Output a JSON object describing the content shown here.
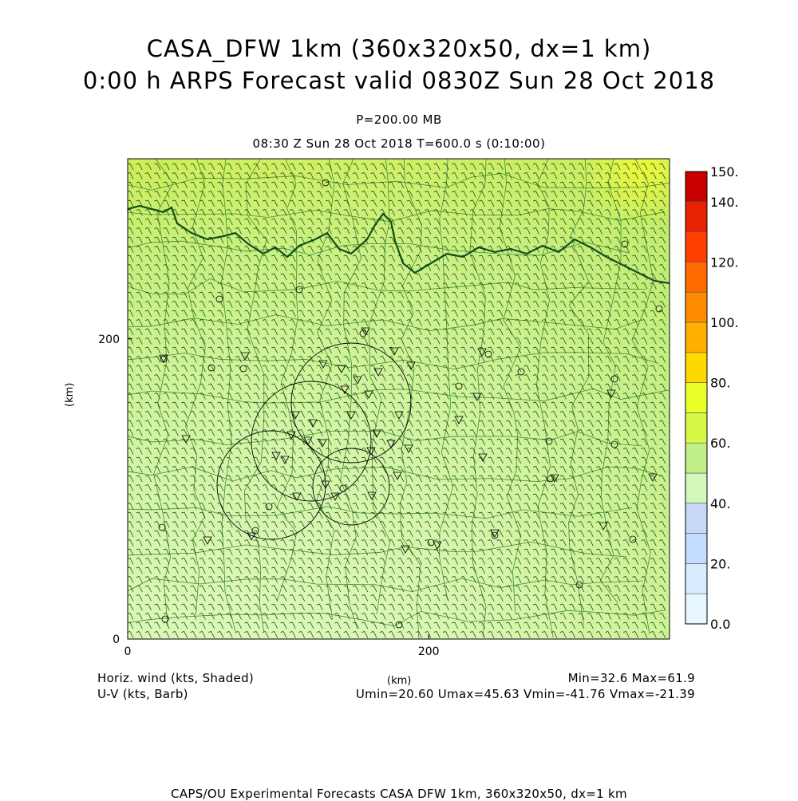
{
  "titles": {
    "line1": "CASA_DFW 1km (360x320x50, dx=1 km)",
    "line2": "0:00 h ARPS Forecast valid 0830Z Sun 28 Oct 2018",
    "pressure": "P=200.00 MB",
    "time": "08:30 Z Sun 28 Oct 2018    T=600.0 s (0:10:00)"
  },
  "footer": {
    "left1": "Horiz. wind (kts, Shaded)",
    "left2": "U-V (kts, Barb)",
    "center": "(km)",
    "right1": "Min=32.6  Max=61.9",
    "right2": "Umin=20.60  Umax=45.63  Vmin=-41.76  Vmax=-21.39",
    "bottom": "CAPS/OU Experimental Forecasts  CASA DFW 1km, 360x320x50, dx=1 km"
  },
  "chart_data": {
    "type": "heatmap",
    "title": "CASA_DFW 1km (360x320x50, dx=1 km)",
    "xlabel": "(km)",
    "ylabel": "(km)",
    "xlim": [
      0,
      360
    ],
    "ylim": [
      0,
      320
    ],
    "x_ticks": [
      0,
      200
    ],
    "y_ticks": [
      0,
      200
    ],
    "field": "Horiz. wind (kts, Shaded)",
    "vector": "U-V (kts, Barb)",
    "min": 32.6,
    "max": 61.9,
    "umin": 20.6,
    "umax": 45.63,
    "vmin": -41.76,
    "vmax": -21.39,
    "colorbar": {
      "levels": [
        0,
        10,
        20,
        30,
        40,
        50,
        60,
        70,
        80,
        90,
        100,
        110,
        120,
        130,
        140,
        150
      ],
      "labels": [
        "0.0",
        "20.",
        "40.",
        "60.",
        "80.",
        "100.",
        "120.",
        "140.",
        "150."
      ],
      "label_values": [
        0,
        20,
        40,
        60,
        80,
        100,
        120,
        140,
        150
      ],
      "colors": [
        "#e8f6ff",
        "#d8ecff",
        "#c4dcff",
        "#c8d8f8",
        "#d2f8bc",
        "#bff08a",
        "#d8f848",
        "#eaff2a",
        "#ffd800",
        "#ffb000",
        "#ff8c00",
        "#ff6a00",
        "#ff3e00",
        "#e82200",
        "#c80000",
        "#a00000"
      ]
    },
    "field_samples": [
      {
        "x": 0,
        "y": 0,
        "value": 38
      },
      {
        "x": 360,
        "y": 0,
        "value": 41
      },
      {
        "x": 0,
        "y": 160,
        "value": 44
      },
      {
        "x": 360,
        "y": 160,
        "value": 47
      },
      {
        "x": 0,
        "y": 280,
        "value": 50
      },
      {
        "x": 200,
        "y": 280,
        "value": 53
      },
      {
        "x": 360,
        "y": 280,
        "value": 56
      },
      {
        "x": 340,
        "y": 315,
        "value": 61.9
      }
    ],
    "legend_position": "right"
  }
}
